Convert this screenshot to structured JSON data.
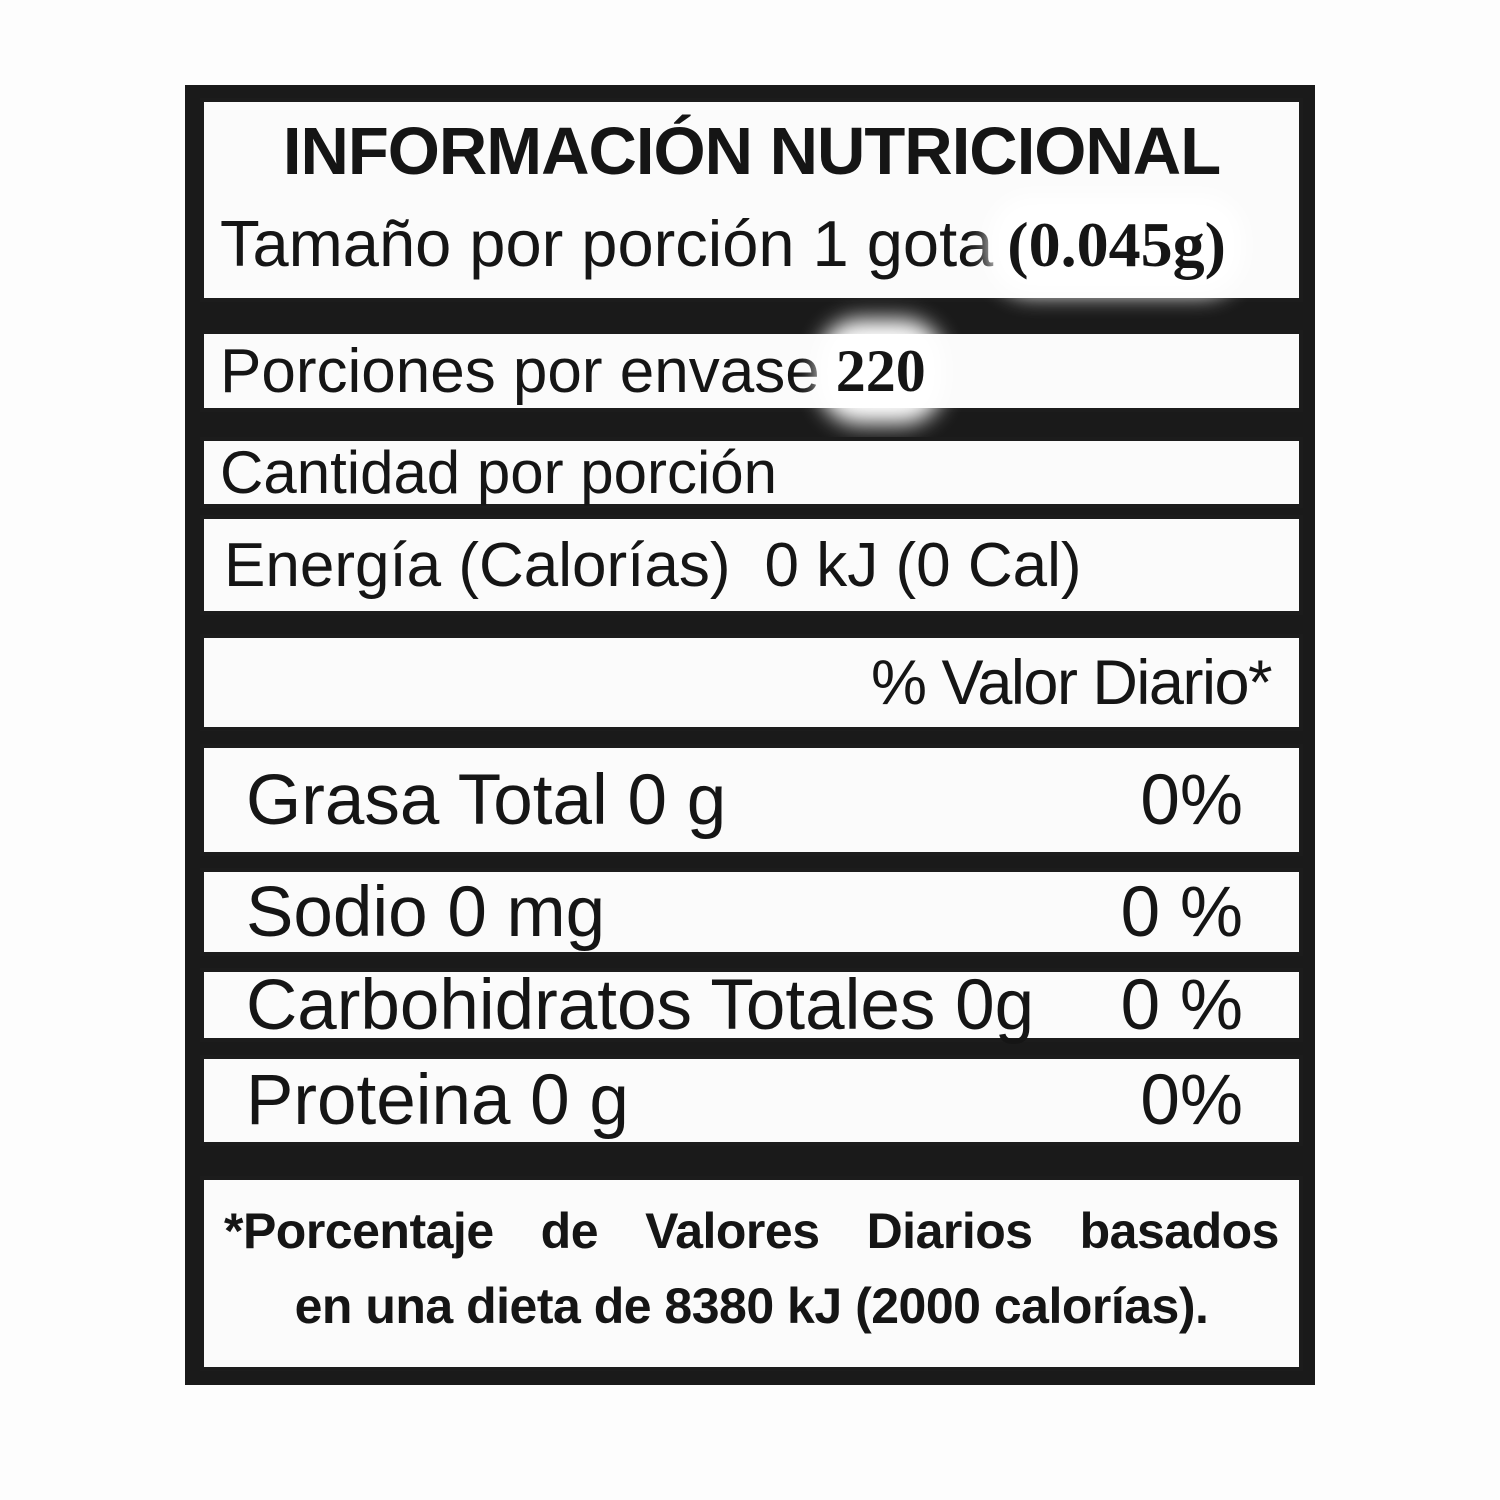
{
  "page": {
    "background": "#fdfdfd"
  },
  "label": {
    "frame_color": "#1a1a1a",
    "box_background": "#fbfbfb",
    "header": {
      "title": "INFORMACIÓN NUTRICIONAL",
      "serving_size_label": "Tamaño por porción 1 gota",
      "serving_size_value": "(0.045g)"
    },
    "servings": {
      "label": "Porciones por envase",
      "value": "220"
    },
    "amount_per_serving_label": "Cantidad por porción",
    "energy": {
      "label": "Energía (Calorías)",
      "value": "0 kJ (0 Cal)"
    },
    "daily_value_header": "% Valor Diario*",
    "nutrients": [
      {
        "name": "Grasa Total 0 g",
        "daily_value": "0%"
      },
      {
        "name": "Sodio 0 mg",
        "daily_value": "0 %"
      },
      {
        "name": "Carbohidratos Totales 0g",
        "daily_value": "0 %"
      },
      {
        "name": "Proteina 0 g",
        "daily_value": "0%"
      }
    ],
    "footnote": {
      "line1": "*Porcentaje de Valores Diarios basados",
      "line2": "en una dieta de 8380 kJ (2000 calorías)."
    }
  }
}
